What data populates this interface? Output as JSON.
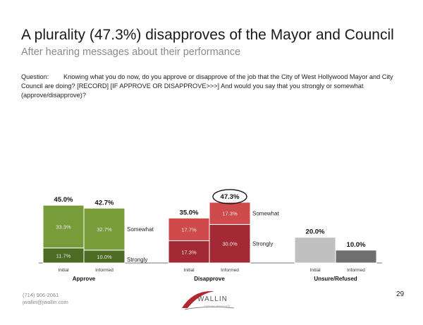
{
  "header": {
    "title": "A plurality (47.3%) disapproves of the Mayor and Council",
    "subtitle": "After hearing messages about their performance"
  },
  "question": {
    "label": "Question:",
    "text": "Knowing what you do now, do you approve or disapprove of the job that the City of West Hollywood Mayor and City Council are doing? [RECORD] [IF APPROVE OR DISAPPROVE>>>] And would you say that you strongly or somewhat (approve/disapprove)?"
  },
  "chart_data": {
    "type": "bar",
    "stacked": true,
    "ylim": [
      0,
      50
    ],
    "groups": [
      {
        "name": "Approve",
        "colors": {
          "strongly": "#4d6b23",
          "somewhat": "#789c3a"
        },
        "bars": [
          {
            "label": "Initial",
            "total": "45.0%",
            "value": 45.0,
            "segments": [
              {
                "name": "Strongly",
                "value": 11.7,
                "label": "11.7%"
              },
              {
                "name": "Somewhat",
                "value": 33.3,
                "label": "33.3%"
              }
            ]
          },
          {
            "label": "Informed",
            "total": "42.7%",
            "value": 42.7,
            "segments": [
              {
                "name": "Strongly",
                "value": 10.0,
                "label": "10.0%"
              },
              {
                "name": "Somewhat",
                "value": 32.7,
                "label": "32.7%"
              }
            ]
          }
        ],
        "segment_labels": {
          "somewhat": "Somewhat",
          "strongly": "Strongly"
        }
      },
      {
        "name": "Disapprove",
        "colors": {
          "strongly": "#a32a35",
          "somewhat": "#cf4b4b"
        },
        "bars": [
          {
            "label": "Initial",
            "total": "35.0%",
            "value": 35.0,
            "segments": [
              {
                "name": "Strongly",
                "value": 17.3,
                "label": "17.3%"
              },
              {
                "name": "Somewhat",
                "value": 17.7,
                "label": "17.7%"
              }
            ]
          },
          {
            "label": "Informed",
            "total": "47.3%",
            "value": 47.3,
            "highlight": true,
            "segments": [
              {
                "name": "Strongly",
                "value": 30.0,
                "label": "30.0%"
              },
              {
                "name": "Somewhat",
                "value": 17.3,
                "label": "17.3%"
              }
            ]
          }
        ],
        "segment_labels": {
          "somewhat": "Somewhat",
          "strongly": "Strongly"
        }
      },
      {
        "name": "Unsure/Refused",
        "colors": {
          "initial": "#c0c0c0",
          "informed": "#6f6f6f"
        },
        "bars": [
          {
            "label": "Initial",
            "total": "20.0%",
            "value": 20.0
          },
          {
            "label": "Informed",
            "total": "10.0%",
            "value": 10.0
          }
        ]
      }
    ]
  },
  "footer": {
    "phone": "(714) 906-2061",
    "email": "jwallin@jwallin.com",
    "page": "29",
    "logo_text": "WALLIN",
    "logo_sub": "Opinion Research"
  }
}
